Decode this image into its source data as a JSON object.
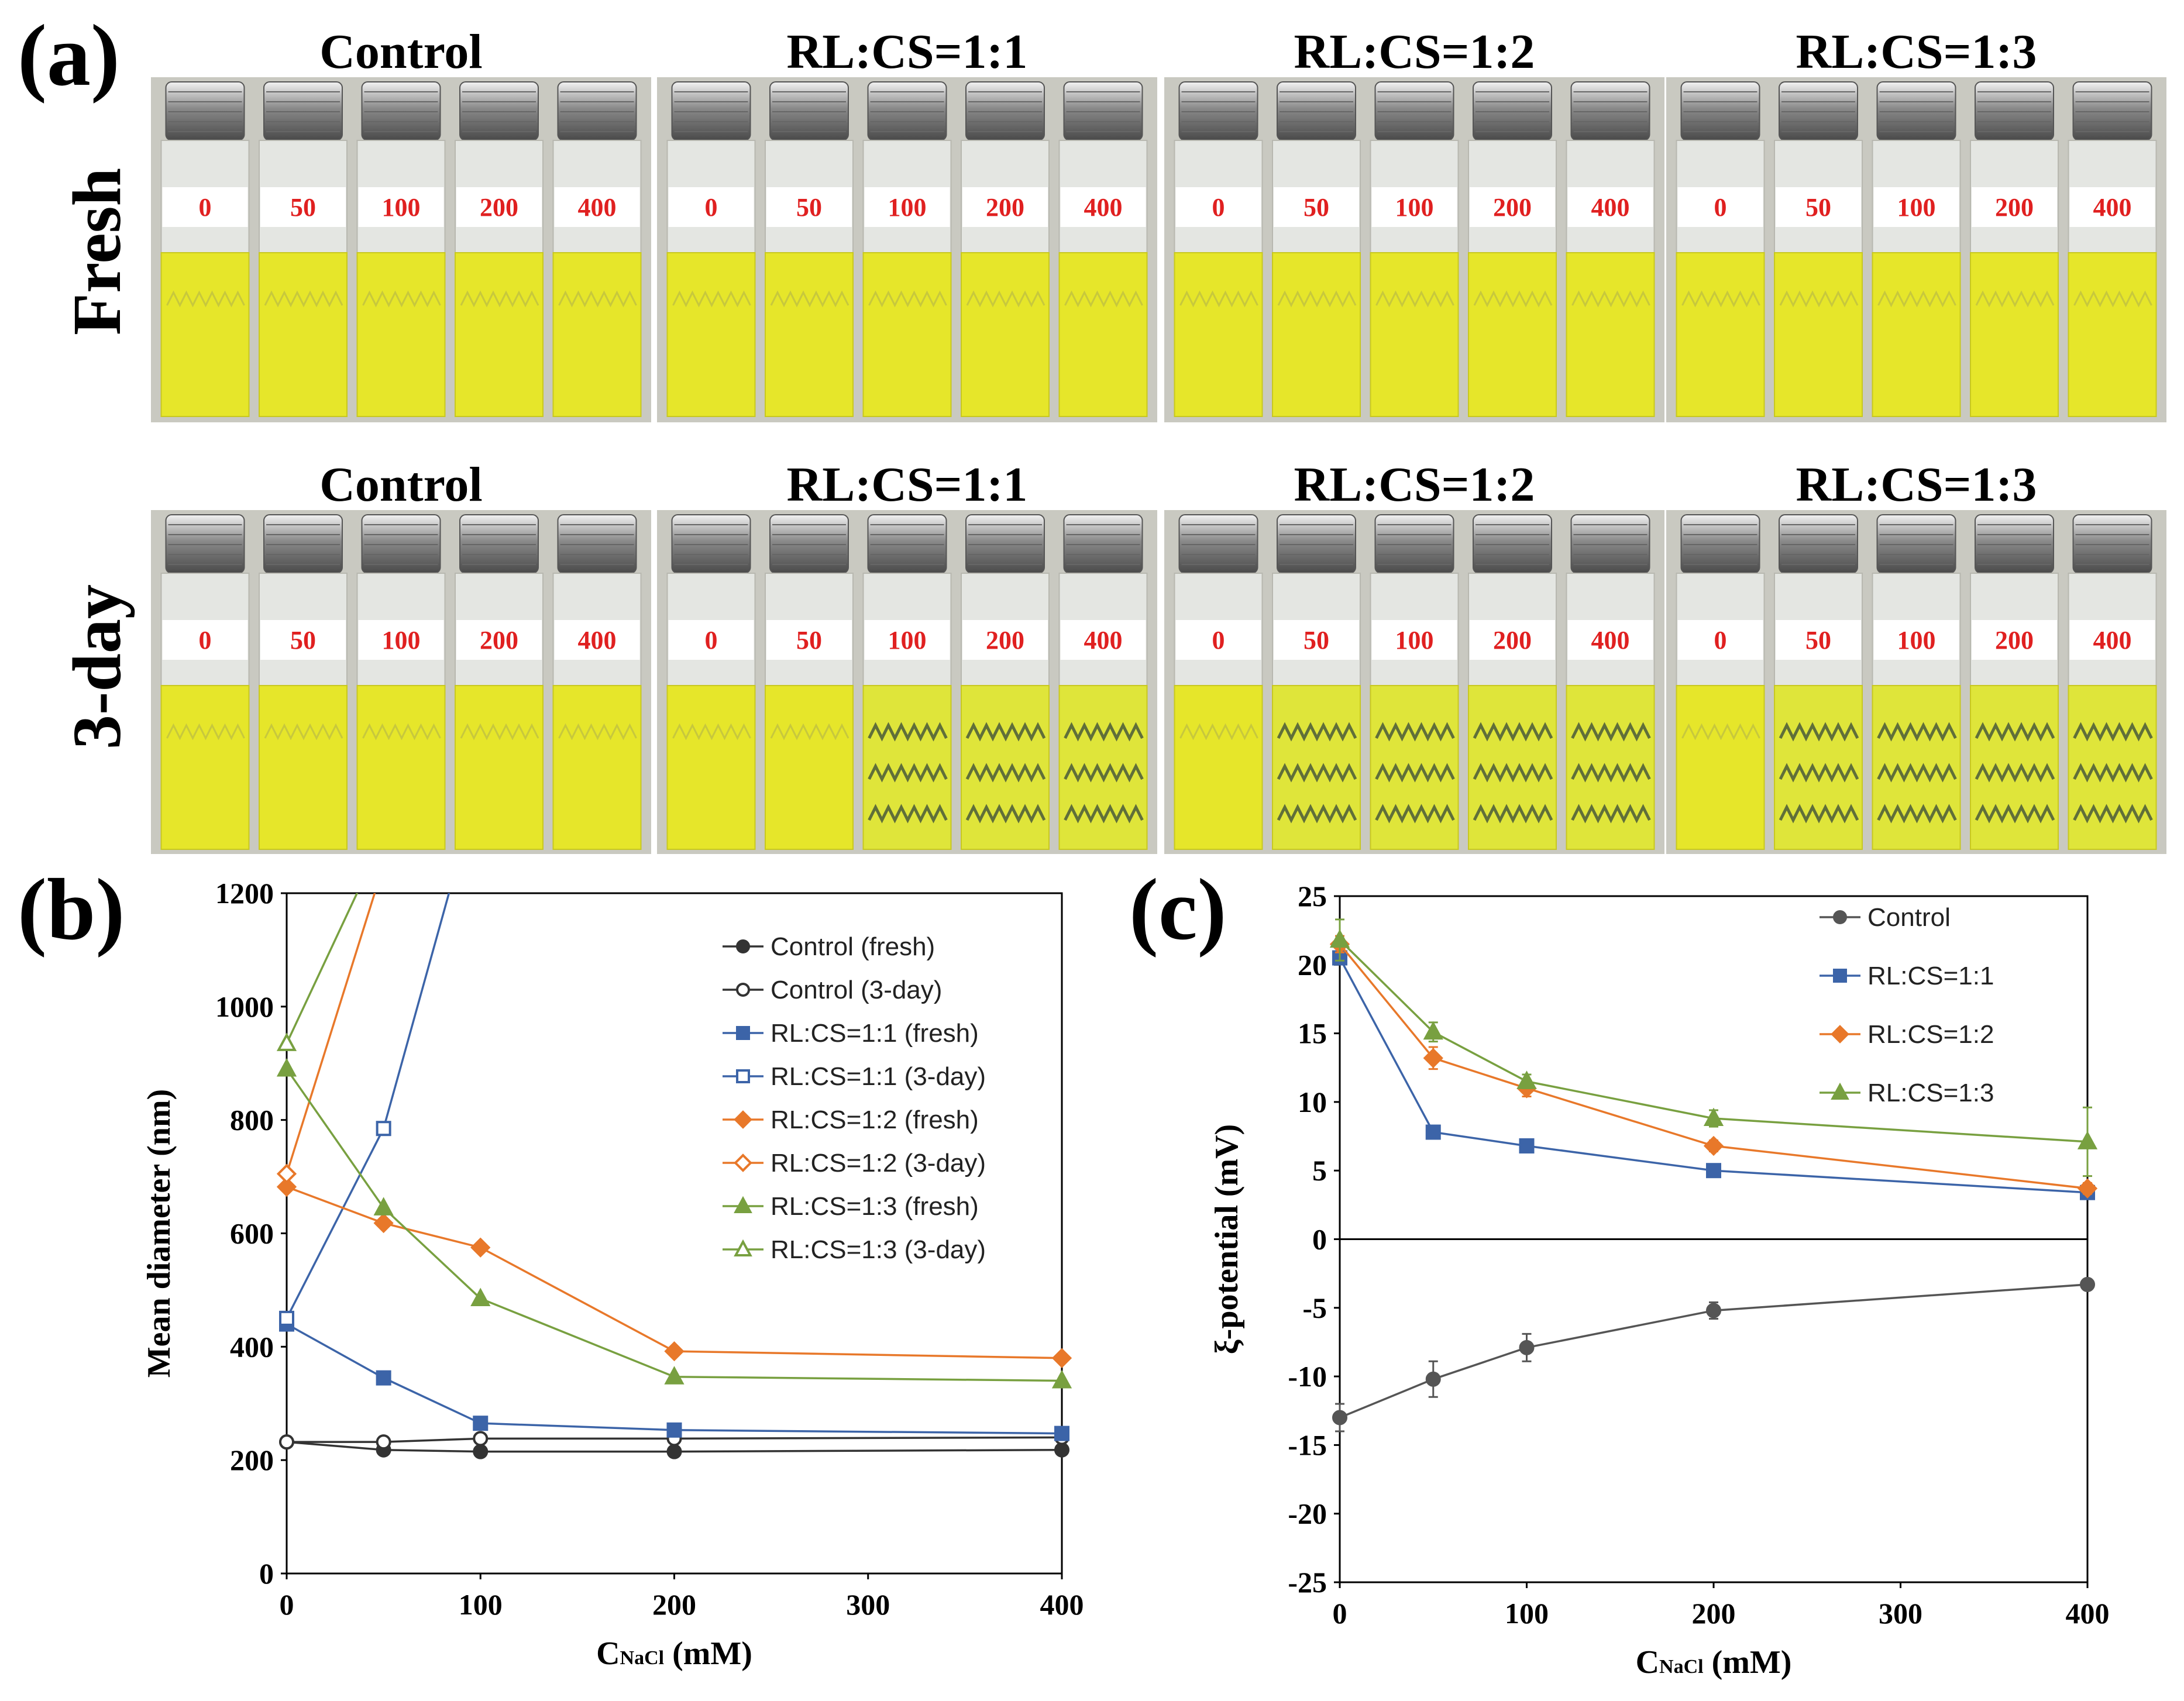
{
  "panel_a": {
    "letter": "(a)",
    "row_labels": [
      "Fresh",
      "3-day"
    ],
    "groups": [
      "Control",
      "RL:CS=1:1",
      "RL:CS=1:2",
      "RL:CS=1:3"
    ],
    "vial_labels": [
      "0",
      "50",
      "100",
      "200",
      "400"
    ],
    "label_color": "#e02020",
    "liquid_color": "#e6e62a",
    "three_day_clear_vials": {
      "Control": [],
      "RL:CS=1:1": [
        "100",
        "200",
        "400"
      ],
      "RL:CS=1:2": [
        "50",
        "100",
        "200",
        "400"
      ],
      "RL:CS=1:3": [
        "50",
        "100",
        "200",
        "400"
      ]
    }
  },
  "chart_data": [
    {
      "type": "line",
      "panel_letter": "(b)",
      "xlabel_main": "C",
      "xlabel_sub": "NaCl",
      "xlabel_unit": " (mM)",
      "ylabel": "Mean diameter (nm)",
      "xlim": [
        0,
        400
      ],
      "ylim": [
        0,
        1200
      ],
      "xticks": [
        0,
        100,
        200,
        300,
        400
      ],
      "yticks": [
        0,
        200,
        400,
        600,
        800,
        1000,
        1200
      ],
      "grid": false,
      "legend_position": "top-right",
      "series": [
        {
          "name": "Control (fresh)",
          "color": "#333333",
          "marker": "circle",
          "filled": true,
          "x": [
            0,
            50,
            100,
            200,
            400
          ],
          "values": [
            232,
            218,
            215,
            215,
            218
          ]
        },
        {
          "name": "Control (3-day)",
          "color": "#333333",
          "marker": "circle",
          "filled": false,
          "x": [
            0,
            50,
            100,
            200,
            400
          ],
          "values": [
            232,
            232,
            238,
            238,
            240
          ]
        },
        {
          "name": "RL:CS=1:1 (fresh)",
          "color": "#3c64a8",
          "marker": "square",
          "filled": true,
          "x": [
            0,
            50,
            100,
            200,
            400
          ],
          "values": [
            440,
            345,
            265,
            253,
            247
          ]
        },
        {
          "name": "RL:CS=1:1 (3-day)",
          "color": "#3c64a8",
          "marker": "square",
          "filled": false,
          "x": [
            0,
            50,
            100
          ],
          "values": [
            450,
            785,
            1400
          ]
        },
        {
          "name": "RL:CS=1:2 (fresh)",
          "color": "#e8782a",
          "marker": "diamond",
          "filled": true,
          "x": [
            0,
            50,
            100,
            200,
            400
          ],
          "values": [
            682,
            618,
            575,
            392,
            380
          ]
        },
        {
          "name": "RL:CS=1:2 (3-day)",
          "color": "#e8782a",
          "marker": "diamond",
          "filled": false,
          "x": [
            0,
            50
          ],
          "values": [
            705,
            1250
          ]
        },
        {
          "name": "RL:CS=1:3 (fresh)",
          "color": "#78a040",
          "marker": "triangle",
          "filled": true,
          "x": [
            0,
            50,
            100,
            200,
            400
          ],
          "values": [
            890,
            645,
            485,
            347,
            340
          ]
        },
        {
          "name": "RL:CS=1:3 (3-day)",
          "color": "#78a040",
          "marker": "triangle",
          "filled": false,
          "x": [
            0,
            50
          ],
          "values": [
            935,
            1300
          ]
        }
      ]
    },
    {
      "type": "line",
      "panel_letter": "(c)",
      "xlabel_main": "C",
      "xlabel_sub": "NaCl",
      "xlabel_unit": " (mM)",
      "ylabel": "ξ-potential (mV)",
      "xlim": [
        0,
        400
      ],
      "ylim": [
        -25,
        25
      ],
      "xticks": [
        0,
        100,
        200,
        300,
        400
      ],
      "yticks": [
        -25,
        -20,
        -15,
        -10,
        -5,
        0,
        5,
        10,
        15,
        20,
        25
      ],
      "grid": false,
      "zero_line": true,
      "legend_position": "top-right",
      "series": [
        {
          "name": "Control",
          "color": "#555555",
          "marker": "circle",
          "filled": true,
          "x": [
            0,
            50,
            100,
            200,
            400
          ],
          "values": [
            -13,
            -10.2,
            -7.9,
            -5.2,
            -3.3
          ],
          "errors": [
            1.0,
            1.3,
            1.0,
            0.6,
            0.2
          ]
        },
        {
          "name": "RL:CS=1:1",
          "color": "#3c64a8",
          "marker": "square",
          "filled": true,
          "x": [
            0,
            50,
            100,
            200,
            400
          ],
          "values": [
            20.5,
            7.8,
            6.8,
            5.0,
            3.4
          ],
          "errors": [
            0.4,
            0.3,
            0.3,
            0.3,
            0.3
          ]
        },
        {
          "name": "RL:CS=1:2",
          "color": "#e8782a",
          "marker": "diamond",
          "filled": true,
          "x": [
            0,
            50,
            100,
            200,
            400
          ],
          "values": [
            21.5,
            13.2,
            11.0,
            6.8,
            3.7
          ],
          "errors": [
            0.6,
            0.8,
            0.6,
            0.4,
            0.4
          ]
        },
        {
          "name": "RL:CS=1:3",
          "color": "#78a040",
          "marker": "triangle",
          "filled": true,
          "x": [
            0,
            50,
            100,
            200,
            400
          ],
          "values": [
            21.8,
            15.1,
            11.5,
            8.8,
            7.1
          ],
          "errors": [
            1.5,
            0.7,
            0.5,
            0.6,
            2.5
          ]
        }
      ]
    }
  ]
}
